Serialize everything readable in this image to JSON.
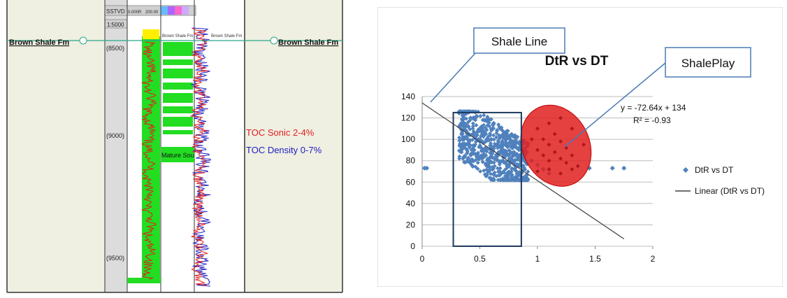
{
  "well_log": {
    "formation_left": "Brown Shale Fm",
    "formation_right": "Brown Shale Fm",
    "track_header": "SSTVD",
    "track_header_2": "0.000R",
    "track_header_3": "200.00",
    "scale_label": "1:5000",
    "depth_labels": [
      "(8500)",
      "(9000)",
      "(9500)"
    ],
    "track_label_1": "Brown Shale Fm",
    "track_label_2": "Brown Shale Fm",
    "mature_label": "Mature Sou",
    "toc_sonic_label": "TOC Sonic 2-4%",
    "toc_density_label": "TOC Density 0-7%",
    "colors": {
      "formation_line": "#2aa889",
      "toc_sonic": "#e02020",
      "toc_density": "#2020c0",
      "fill_green": "#22dd22",
      "fill_yellow": "#ffee00"
    }
  },
  "chart_data": {
    "type": "scatter",
    "title": "DtR vs DT",
    "xlim": [
      0,
      2
    ],
    "ylim": [
      0,
      140
    ],
    "x_ticks": [
      "0",
      "0.5",
      "1",
      "1.5",
      "2"
    ],
    "y_ticks": [
      "0",
      "20",
      "40",
      "60",
      "80",
      "100",
      "120",
      "140"
    ],
    "grid": "horizontal",
    "legend_position": "right",
    "series": [
      {
        "name": "DtR vs DT",
        "kind": "points",
        "color": "#4f81bd",
        "points": [
          [
            0.02,
            73
          ],
          [
            0.04,
            73
          ],
          [
            0.35,
            118
          ],
          [
            0.4,
            112
          ],
          [
            0.45,
            103
          ],
          [
            0.5,
            98
          ],
          [
            0.55,
            92
          ],
          [
            0.6,
            88
          ],
          [
            0.65,
            84
          ],
          [
            0.7,
            80
          ],
          [
            0.75,
            76
          ],
          [
            0.8,
            72
          ],
          [
            0.85,
            68
          ],
          [
            0.9,
            66
          ],
          [
            0.35,
            100
          ],
          [
            0.4,
            95
          ],
          [
            0.45,
            90
          ],
          [
            0.5,
            110
          ],
          [
            0.55,
            105
          ],
          [
            0.6,
            100
          ],
          [
            0.65,
            95
          ],
          [
            0.7,
            90
          ],
          [
            0.75,
            85
          ],
          [
            0.8,
            80
          ],
          [
            0.38,
            108
          ],
          [
            0.42,
            120
          ],
          [
            0.48,
            86
          ],
          [
            0.52,
            82
          ],
          [
            0.58,
            78
          ],
          [
            0.62,
            115
          ],
          [
            0.68,
            110
          ],
          [
            0.72,
            104
          ],
          [
            0.78,
            98
          ],
          [
            0.82,
            92
          ],
          [
            0.88,
            86
          ],
          [
            0.95,
            80
          ],
          [
            1.0,
            76
          ],
          [
            1.05,
            72
          ],
          [
            1.1,
            68
          ],
          [
            1.45,
            73
          ],
          [
            1.65,
            73
          ],
          [
            1.75,
            73
          ]
        ]
      },
      {
        "name": "Linear (DtR vs DT)",
        "kind": "line",
        "color": "#404040",
        "x": [
          0.1,
          1.75
        ],
        "y": [
          126.7,
          6.9
        ]
      }
    ],
    "cluster_points_red": [
      [
        1.0,
        110
      ],
      [
        1.05,
        100
      ],
      [
        1.1,
        95
      ],
      [
        1.15,
        88
      ],
      [
        1.2,
        82
      ],
      [
        1.25,
        78
      ],
      [
        1.0,
        90
      ],
      [
        1.05,
        85
      ],
      [
        1.1,
        80
      ],
      [
        1.15,
        105
      ],
      [
        1.2,
        98
      ],
      [
        1.25,
        92
      ],
      [
        1.3,
        85
      ],
      [
        1.35,
        75
      ],
      [
        0.95,
        100
      ],
      [
        1.1,
        115
      ],
      [
        1.2,
        120
      ],
      [
        1.3,
        110
      ],
      [
        1.4,
        95
      ],
      [
        1.0,
        70
      ],
      [
        1.1,
        72
      ],
      [
        1.2,
        68
      ],
      [
        1.3,
        72
      ]
    ],
    "equation": "y = -72.64x + 134",
    "r_squared": "R² = -0.93",
    "annotations": [
      "Shale Line",
      "ShalePlay"
    ]
  }
}
